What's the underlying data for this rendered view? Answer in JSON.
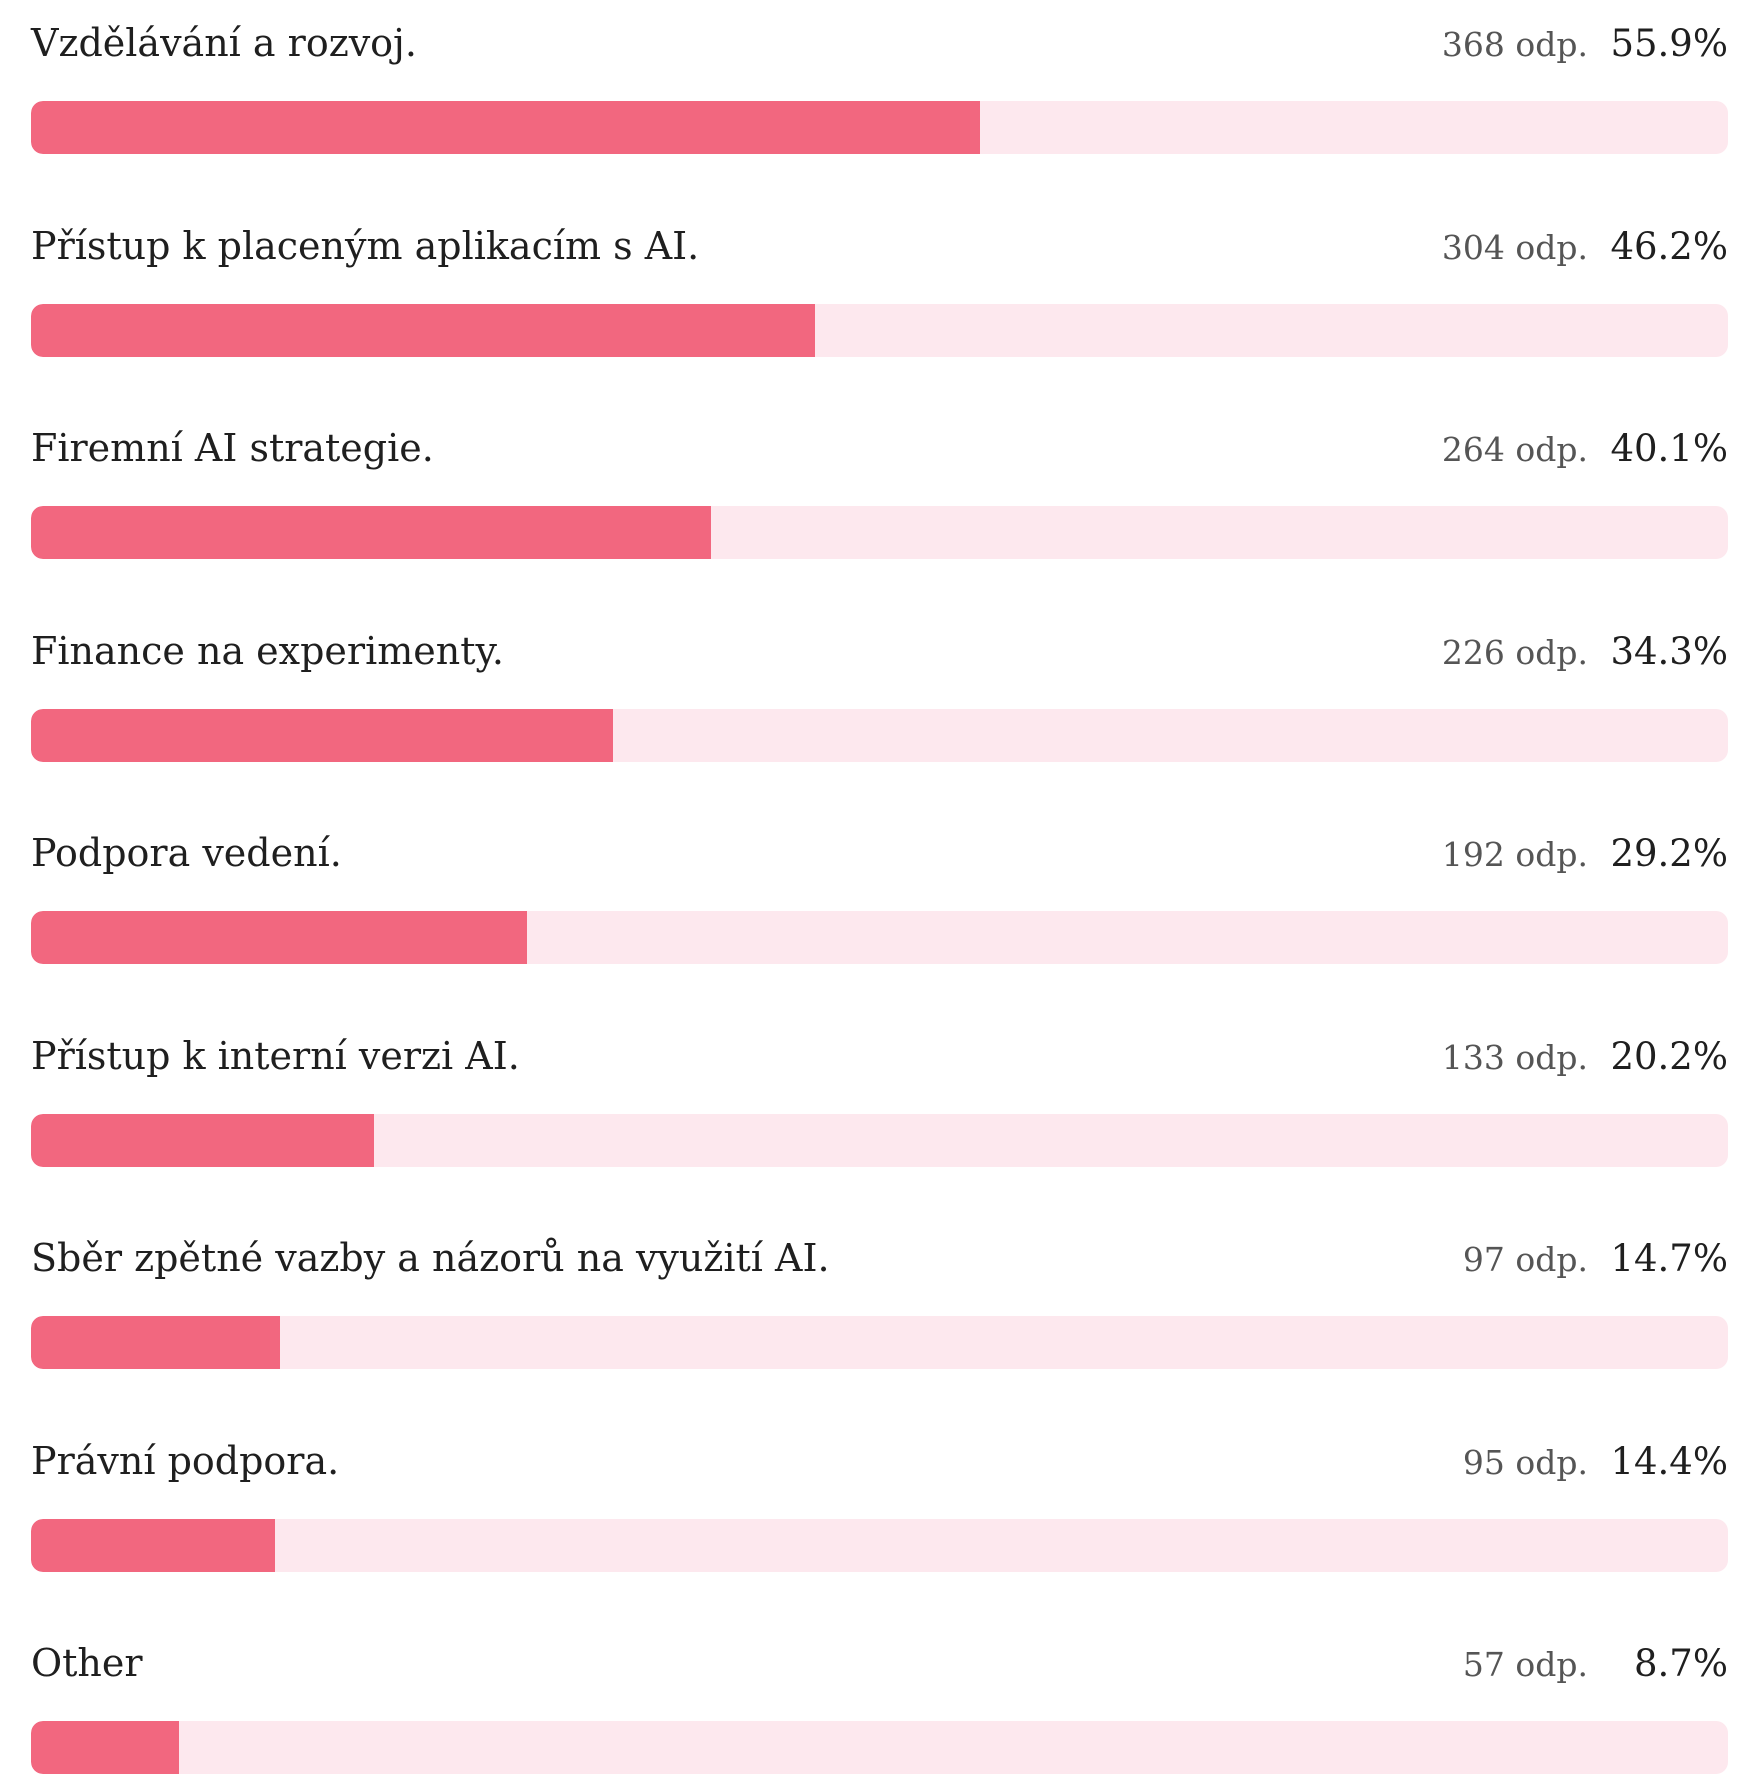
{
  "chart_data": {
    "type": "bar",
    "orientation": "horizontal",
    "unit_label": "odp.",
    "colors": {
      "bar": "#f2677f",
      "track": "#fde8ee",
      "text": "#1f1f1f",
      "count_text": "#555555"
    },
    "rows": [
      {
        "label": "Vzdělávání a rozvoj.",
        "count_label": "368 odp.",
        "percent_label": "55.9%",
        "count": 368,
        "percent": 55.9
      },
      {
        "label": "Přístup k placeným aplikacím s AI.",
        "count_label": "304 odp.",
        "percent_label": "46.2%",
        "count": 304,
        "percent": 46.2
      },
      {
        "label": "Firemní AI strategie.",
        "count_label": "264 odp.",
        "percent_label": "40.1%",
        "count": 264,
        "percent": 40.1
      },
      {
        "label": "Finance na experimenty.",
        "count_label": "226 odp.",
        "percent_label": "34.3%",
        "count": 226,
        "percent": 34.3
      },
      {
        "label": "Podpora vedení.",
        "count_label": "192 odp.",
        "percent_label": "29.2%",
        "count": 192,
        "percent": 29.2
      },
      {
        "label": "Přístup k interní verzi AI.",
        "count_label": "133 odp.",
        "percent_label": "20.2%",
        "count": 133,
        "percent": 20.2
      },
      {
        "label": "Sběr zpětné vazby a názorů na využití AI.",
        "count_label": "97 odp.",
        "percent_label": "14.7%",
        "count": 97,
        "percent": 14.7
      },
      {
        "label": "Právní podpora.",
        "count_label": "95 odp.",
        "percent_label": "14.4%",
        "count": 95,
        "percent": 14.4
      },
      {
        "label": "Other",
        "count_label": "57 odp.",
        "percent_label": "8.7%",
        "count": 57,
        "percent": 8.7
      }
    ]
  }
}
